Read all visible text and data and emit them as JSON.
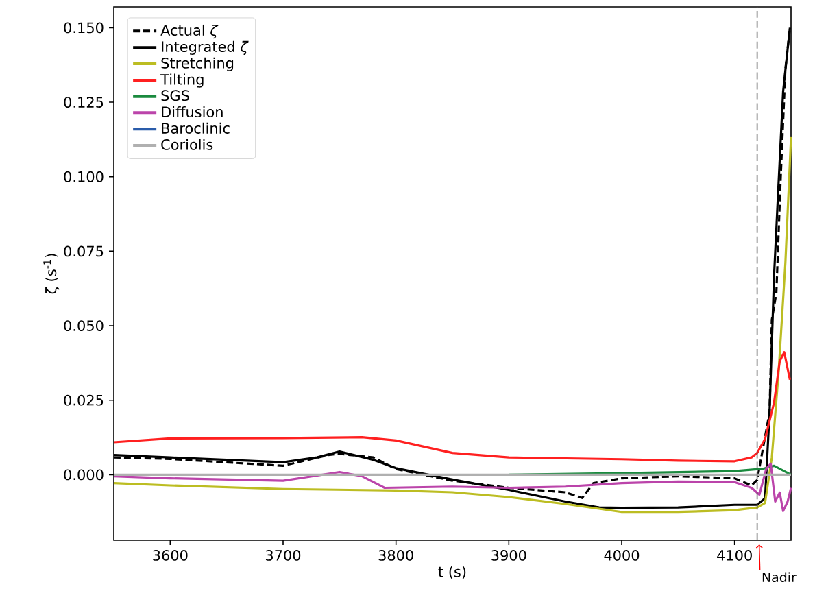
{
  "chart_data": {
    "type": "line",
    "xlabel": "t (s)",
    "ylabel": "ζ (s$^{-1}$)",
    "xlim": [
      3550,
      4150
    ],
    "ylim": [
      -0.022,
      0.157
    ],
    "xticks": [
      3600,
      3700,
      3800,
      3900,
      4000,
      4100
    ],
    "yticks": [
      {
        "value": 0,
        "label": "0.000"
      },
      {
        "value": 0.025,
        "label": "0.025"
      },
      {
        "value": 0.05,
        "label": "0.050"
      },
      {
        "value": 0.075,
        "label": "0.075"
      },
      {
        "value": 0.1,
        "label": "0.100"
      },
      {
        "value": 0.125,
        "label": "0.125"
      },
      {
        "value": 0.15,
        "label": "0.150"
      }
    ],
    "grid": false,
    "legend": "top left",
    "marker": "none",
    "ref_lines": [
      {
        "axis": "x",
        "value": 4120,
        "label": "Nadir",
        "color": "#555555",
        "line_style": "dashed"
      }
    ],
    "series": [
      {
        "name": "Actual *ζ*",
        "color": "#000000",
        "line_style": "dashed",
        "x": [
          3550,
          3600,
          3700,
          3740,
          3750,
          3780,
          3800,
          3850,
          3900,
          3950,
          3965,
          3975,
          4000,
          4050,
          4100,
          4115,
          4120,
          4131,
          4133,
          4137,
          4141,
          4145,
          4149
        ],
        "values": [
          0.0058,
          0.0053,
          0.003,
          0.0066,
          0.007,
          0.0058,
          0.0019,
          -0.002,
          -0.0044,
          -0.0059,
          -0.0078,
          -0.0028,
          -0.0012,
          -0.0005,
          -0.0012,
          -0.0036,
          -0.0018,
          0.021,
          0.052,
          0.061,
          0.101,
          0.136,
          0.15
        ]
      },
      {
        "name": "Integrated *ζ*",
        "color": "#000000",
        "line_style": "solid",
        "x": [
          3550,
          3600,
          3700,
          3730,
          3750,
          3780,
          3800,
          3850,
          3900,
          3950,
          3980,
          4000,
          4050,
          4100,
          4120,
          4127,
          4131,
          4135,
          4139,
          4143,
          4149
        ],
        "values": [
          0.0066,
          0.0058,
          0.0042,
          0.0058,
          0.0078,
          0.005,
          0.0022,
          -0.0016,
          -0.0051,
          -0.009,
          -0.011,
          -0.0111,
          -0.011,
          -0.0101,
          -0.0101,
          -0.0079,
          0.021,
          0.067,
          0.098,
          0.1286,
          0.15
        ]
      },
      {
        "name": "Stretching",
        "color": "#bcbd22",
        "line_style": "solid",
        "x": [
          3550,
          3600,
          3700,
          3800,
          3850,
          3900,
          3950,
          4000,
          4050,
          4100,
          4120,
          4127,
          4133,
          4139,
          4145,
          4150
        ],
        "values": [
          -0.0028,
          -0.0036,
          -0.0048,
          -0.0053,
          -0.0059,
          -0.0075,
          -0.0098,
          -0.0125,
          -0.0125,
          -0.0119,
          -0.011,
          -0.0095,
          0.0058,
          0.0345,
          0.0711,
          0.1133
        ]
      },
      {
        "name": "Tilting",
        "color": "#ff2020",
        "line_style": "solid",
        "x": [
          3550,
          3600,
          3700,
          3770,
          3800,
          3850,
          3900,
          4000,
          4050,
          4100,
          4115,
          4120,
          4127,
          4135,
          4140,
          4144,
          4149
        ],
        "values": [
          0.0109,
          0.0122,
          0.0123,
          0.0126,
          0.0115,
          0.0073,
          0.0058,
          0.0052,
          0.0047,
          0.0045,
          0.0058,
          0.0073,
          0.012,
          0.0243,
          0.0381,
          0.0411,
          0.0319
        ]
      },
      {
        "name": "SGS",
        "color": "#1a8a3e",
        "line_style": "solid",
        "x": [
          3900,
          4000,
          4100,
          4125,
          4135,
          4150
        ],
        "values": [
          0.0,
          0.0005,
          0.0012,
          0.002,
          0.003,
          0.0
        ]
      },
      {
        "name": "Diffusion",
        "color": "#bb44aa",
        "line_style": "solid",
        "x": [
          3550,
          3600,
          3700,
          3750,
          3770,
          3790,
          3850,
          3900,
          3950,
          4000,
          4050,
          4100,
          4115,
          4122,
          4128,
          4132,
          4136,
          4140,
          4143,
          4147,
          4150
        ],
        "values": [
          -0.0005,
          -0.0012,
          -0.002,
          0.0009,
          -0.0005,
          -0.0044,
          -0.004,
          -0.0044,
          -0.004,
          -0.0028,
          -0.0023,
          -0.0025,
          -0.0044,
          -0.0067,
          0.0019,
          0.0037,
          -0.009,
          -0.006,
          -0.0122,
          -0.009,
          -0.0044
        ]
      },
      {
        "name": "Baroclinic",
        "color": "#2a5caa",
        "line_style": "solid",
        "values": [
          null
        ]
      },
      {
        "name": "Coriolis",
        "color": "#b0b0b0",
        "line_style": "solid",
        "x": [
          3550,
          4150
        ],
        "values": [
          0.0,
          0.0
        ]
      }
    ]
  }
}
